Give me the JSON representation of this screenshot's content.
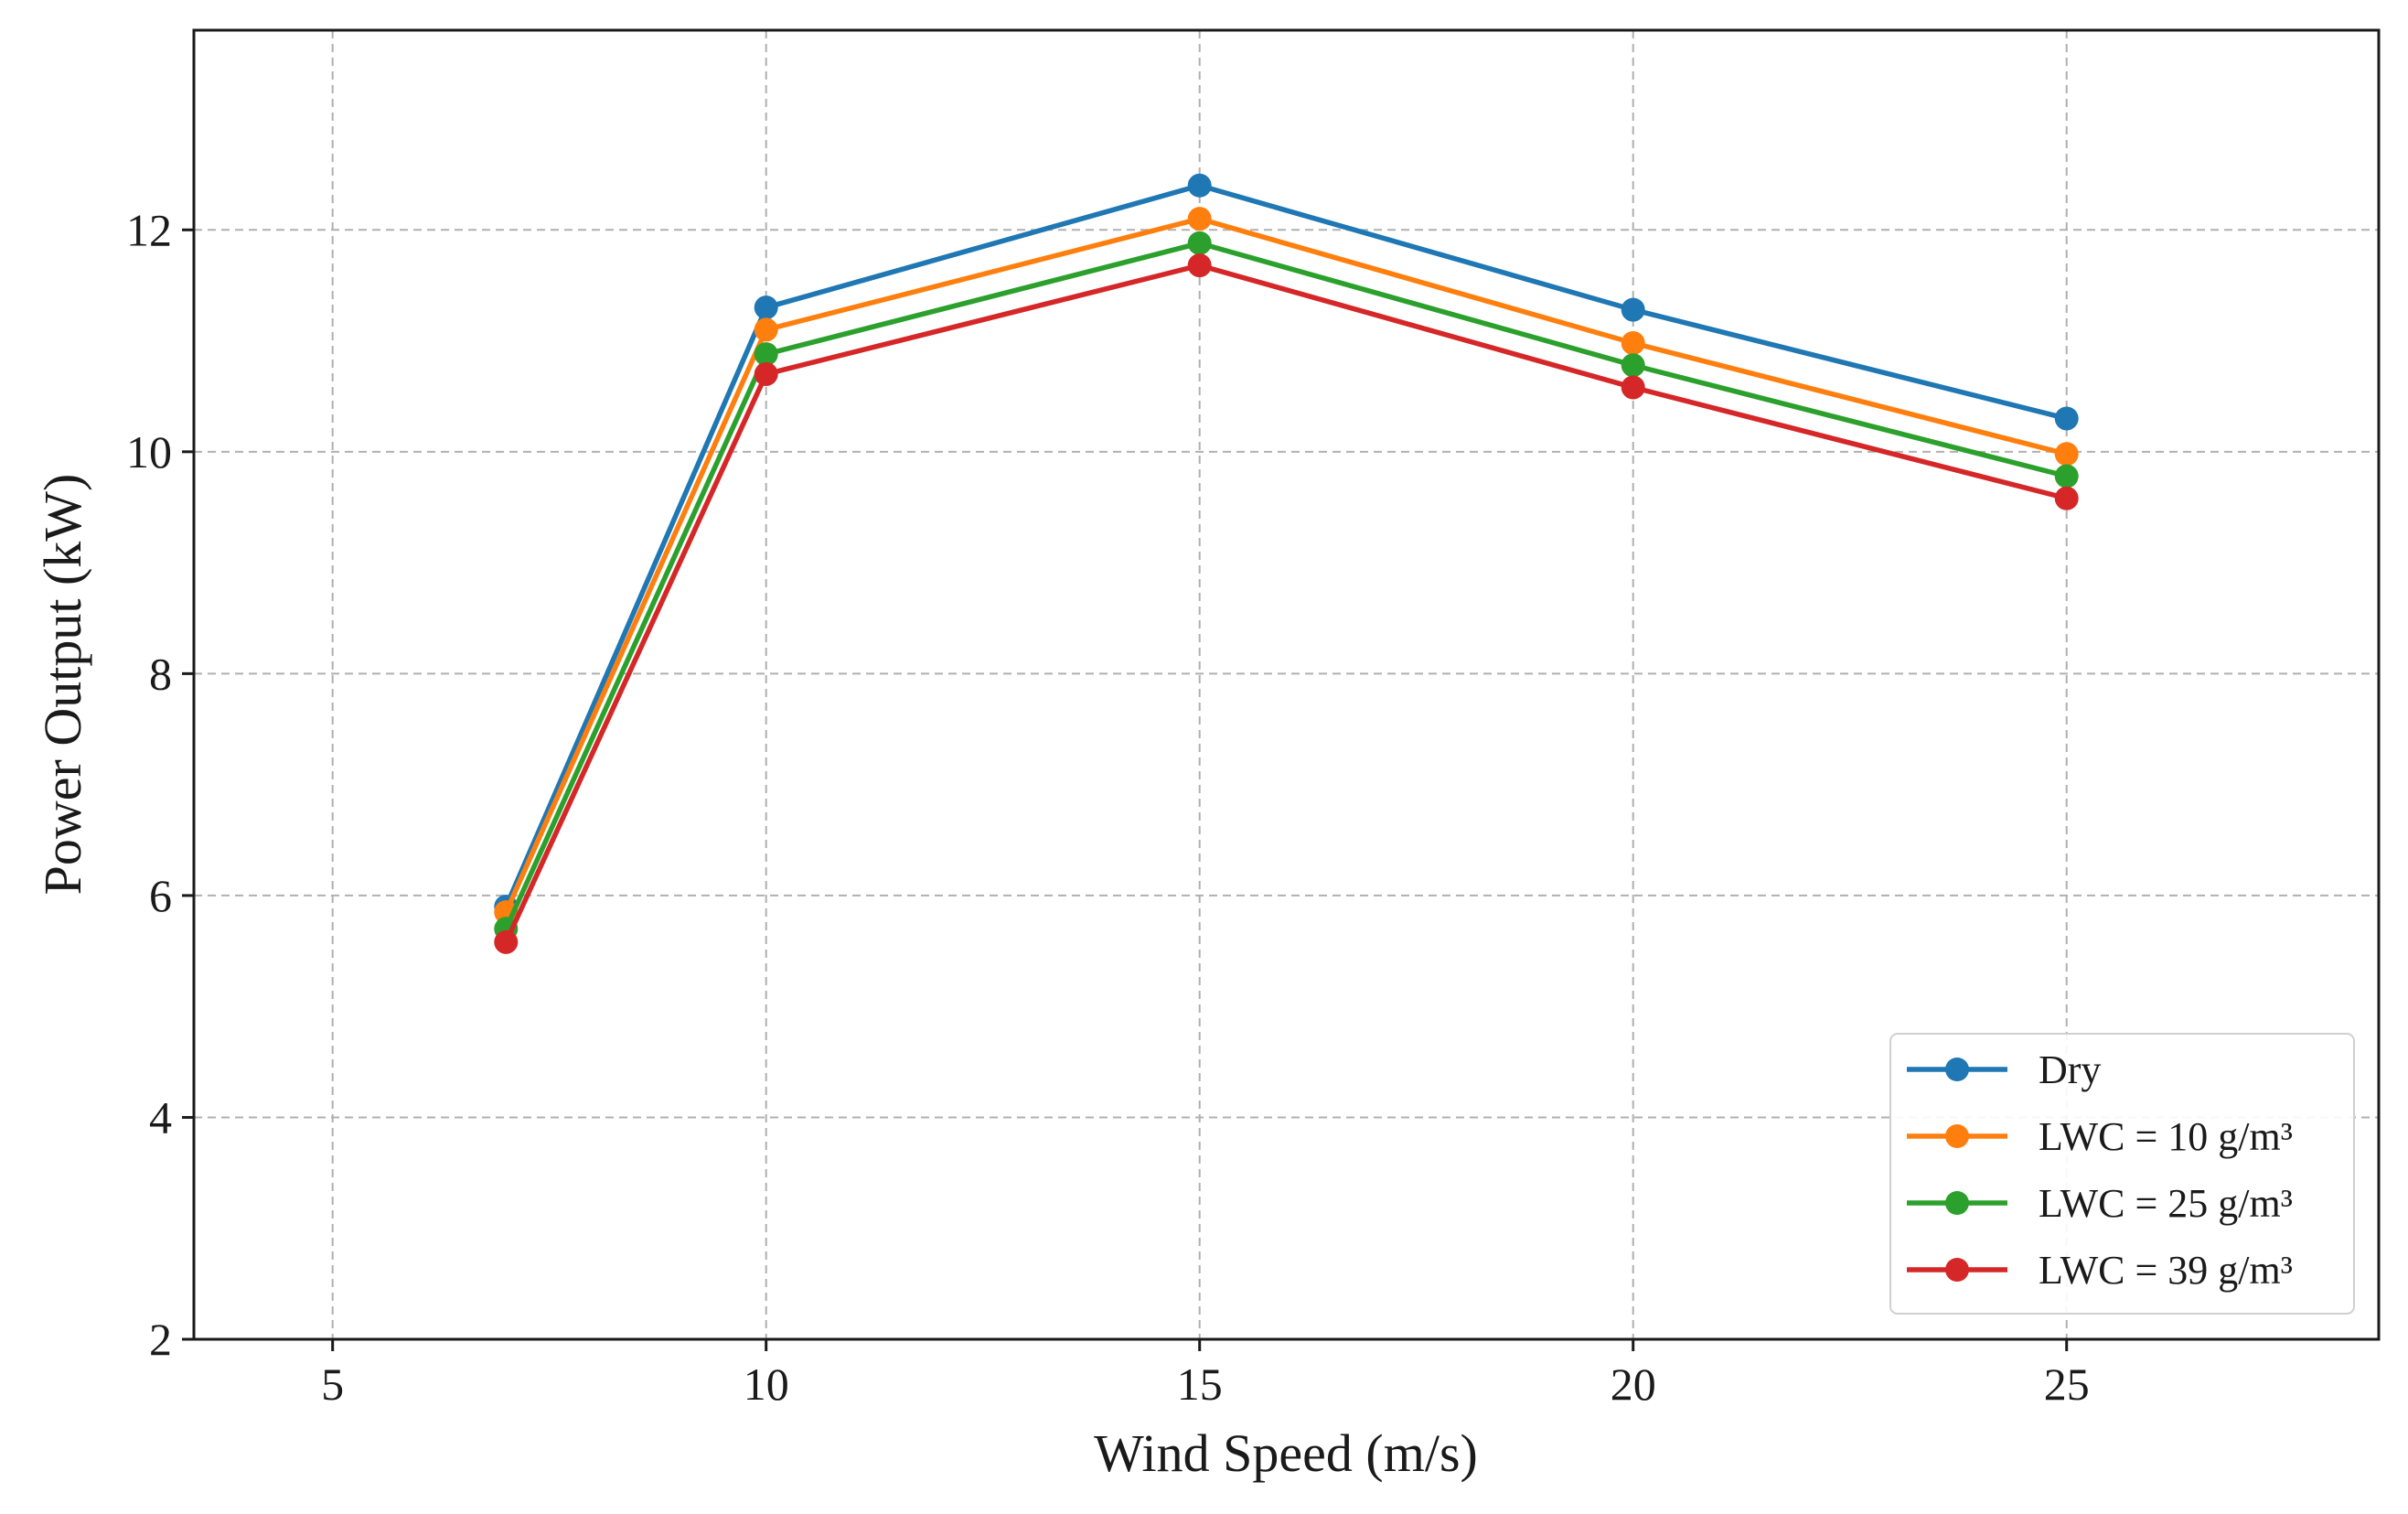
{
  "chart_data": {
    "type": "line",
    "title": "",
    "xlabel": "Wind Speed (m/s)",
    "ylabel": "Power Output (kW)",
    "xlim": [
      3.4,
      28.6
    ],
    "ylim": [
      2,
      13.8
    ],
    "xticks": [
      5,
      10,
      15,
      20,
      25
    ],
    "yticks": [
      2,
      4,
      6,
      8,
      10,
      12
    ],
    "grid": true,
    "legend_position": "lower-right",
    "x": [
      7,
      10,
      15,
      20,
      25
    ],
    "series": [
      {
        "name": "Dry",
        "color": "#1f77b4",
        "values": [
          5.9,
          11.3,
          12.4,
          11.28,
          10.3
        ]
      },
      {
        "name": "LWC = 10 g/m³",
        "color": "#ff7f0e",
        "values": [
          5.85,
          11.1,
          12.1,
          10.98,
          9.98
        ]
      },
      {
        "name": "LWC = 25 g/m³",
        "color": "#2ca02c",
        "values": [
          5.7,
          10.88,
          11.88,
          10.78,
          9.78
        ]
      },
      {
        "name": "LWC = 39 g/m³",
        "color": "#d62728",
        "values": [
          5.58,
          10.7,
          11.68,
          10.58,
          9.58
        ]
      }
    ]
  }
}
